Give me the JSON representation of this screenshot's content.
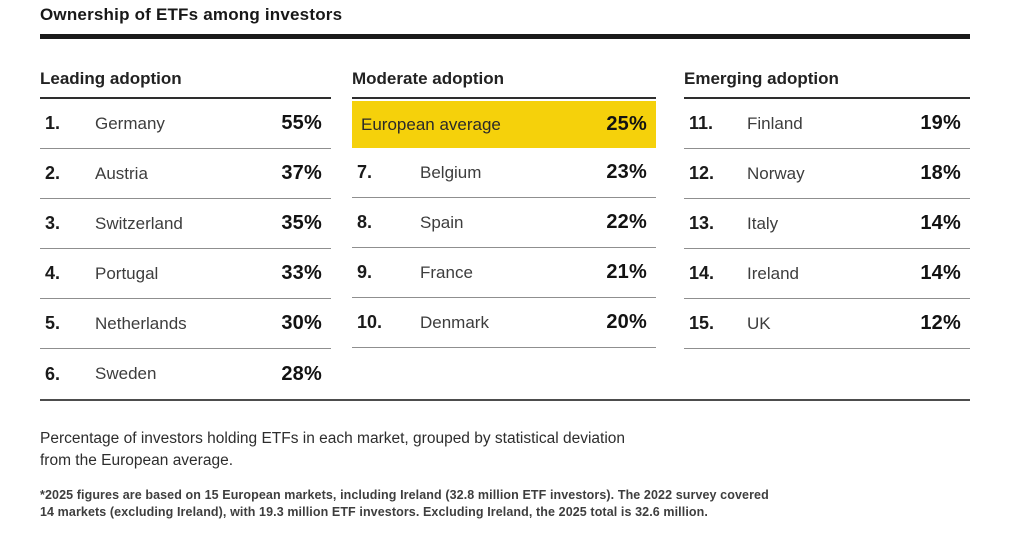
{
  "title": "Ownership of ETFs among investors",
  "colors": {
    "highlight_yellow": "#F5D10B",
    "title_rule": "#1a1a1a",
    "separator": "#8f8f8f",
    "text_primary": "#1c1c1c",
    "text_secondary": "#3d3d3d"
  },
  "caption": {
    "line1": "Percentage of investors holding ETFs in each market, grouped by statistical deviation",
    "line2": "from the European average."
  },
  "footnote": {
    "line1": "*2025 figures are based on 15 European markets, including Ireland (32.8 million ETF investors). The 2022 survey covered",
    "line2": "14 markets (excluding Ireland), with 19.3 million ETF investors. Excluding Ireland, the 2025 total is 32.6 million."
  },
  "chart_data": {
    "type": "table",
    "title": "Ownership of ETFs among investors",
    "unit": "% of investors holding ETFs in each market",
    "highlighted_row": "European average",
    "groups": [
      {
        "label": "Leading adoption",
        "rows": [
          {
            "rank": "1.",
            "market": "Germany",
            "value": "55%"
          },
          {
            "rank": "2.",
            "market": "Austria",
            "value": "37%"
          },
          {
            "rank": "3.",
            "market": "Switzerland",
            "value": "35%"
          },
          {
            "rank": "4.",
            "market": "Portugal",
            "value": "33%"
          },
          {
            "rank": "5.",
            "market": "Netherlands",
            "value": "30%"
          },
          {
            "rank": "6.",
            "market": "Sweden",
            "value": "28%"
          }
        ]
      },
      {
        "label": "Moderate adoption",
        "rows": [
          {
            "rank": "",
            "market": "European average",
            "value": "25%",
            "highlight": true
          },
          {
            "rank": "7.",
            "market": "Belgium",
            "value": "23%"
          },
          {
            "rank": "8.",
            "market": "Spain",
            "value": "22%"
          },
          {
            "rank": "9.",
            "market": "France",
            "value": "21%"
          },
          {
            "rank": "10.",
            "market": "Denmark",
            "value": "20%"
          }
        ]
      },
      {
        "label": "Emerging adoption",
        "rows": [
          {
            "rank": "11.",
            "market": "Finland",
            "value": "19%"
          },
          {
            "rank": "12.",
            "market": "Norway",
            "value": "18%"
          },
          {
            "rank": "13.",
            "market": "Italy",
            "value": "14%"
          },
          {
            "rank": "14.",
            "market": "Ireland",
            "value": "14%"
          },
          {
            "rank": "15.",
            "market": "UK",
            "value": "12%"
          }
        ]
      }
    ]
  }
}
